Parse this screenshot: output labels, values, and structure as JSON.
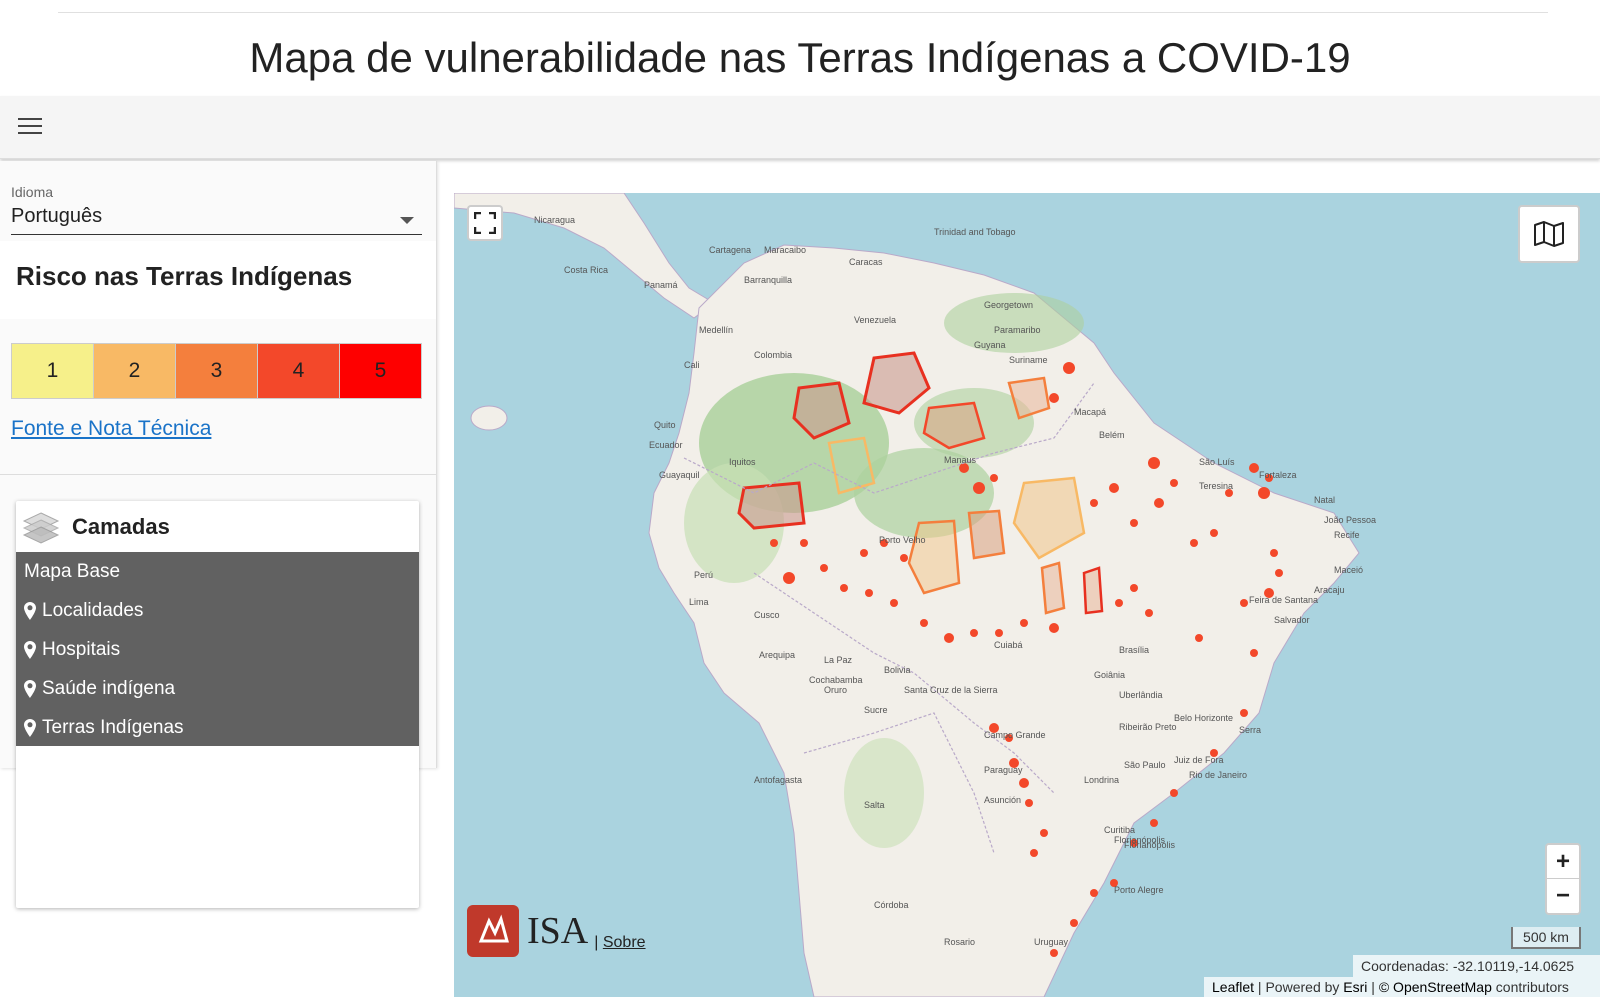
{
  "header": {
    "title": "Mapa de vulnerabilidade nas Terras Indígenas a COVID-19"
  },
  "toolbar": {
    "menu_icon": "hamburger-menu-icon"
  },
  "sidebar": {
    "language": {
      "label": "Idioma",
      "value": "Português"
    },
    "risk": {
      "title": "Risco nas Terras Indígenas",
      "levels": [
        {
          "label": "1",
          "color": "#f6f08a"
        },
        {
          "label": "2",
          "color": "#f8b965"
        },
        {
          "label": "3",
          "color": "#f47f3d"
        },
        {
          "label": "4",
          "color": "#f3482a"
        },
        {
          "label": "5",
          "color": "#fe0000"
        }
      ]
    },
    "source_link": "Fonte e Nota Técnica",
    "layers": {
      "title": "Camadas",
      "base_map": "Mapa Base",
      "items": [
        "Localidades",
        "Hospitais",
        "Saúde indígena",
        "Terras Indígenas"
      ]
    }
  },
  "map": {
    "scale": "500 km",
    "coordinates": "Coordenadas: -32.10119,-14.0625",
    "attribution": {
      "leaflet": "Leaflet",
      "powered": "Powered by",
      "esri": "Esri",
      "osm": "© OpenStreetMap",
      "contributors": "contributors"
    },
    "logo_text": "ISA",
    "about_link": "Sobre",
    "zoom_in": "+",
    "zoom_out": "−",
    "labels": [
      "Venezuela",
      "Colombia",
      "Guyana",
      "Suriname",
      "Ecuador",
      "Perú",
      "Bolivia",
      "Paraguay",
      "Manaus",
      "Belém",
      "São Luís",
      "Teresina",
      "Fortaleza",
      "Natal",
      "João Pessoa",
      "Recife",
      "Maceió",
      "Aracaju",
      "Salvador",
      "Brasília",
      "Goiânia",
      "Cuiabá",
      "Porto Velho",
      "Macapá",
      "Belo Horizonte",
      "Rio de Janeiro",
      "São Paulo",
      "Curitiba",
      "Porto Alegre",
      "Lima",
      "Quito",
      "Caracas",
      "Georgetown",
      "Paramaribo",
      "La Paz",
      "Santa Cruz de la Sierra",
      "Asunción",
      "Campo Grande",
      "Trinidad and Tobago",
      "Iquitos",
      "Cusco",
      "Arequipa",
      "Antofagasta",
      "Salta",
      "Córdoba",
      "Rosario",
      "Uruguay",
      "Medellín",
      "Cali",
      "Guayaquil",
      "Panamá",
      "Costa Rica",
      "Nicaragua",
      "Maracaibo",
      "Barranquilla",
      "Cartagena",
      "Feira de Santana",
      "Londrina",
      "Florianópolis",
      "Uberlândia",
      "Ribeirão Preto",
      "Cochabamba",
      "Sucre",
      "Oruro",
      "Florianópolis",
      "Serra",
      "Juiz de Fora"
    ]
  }
}
